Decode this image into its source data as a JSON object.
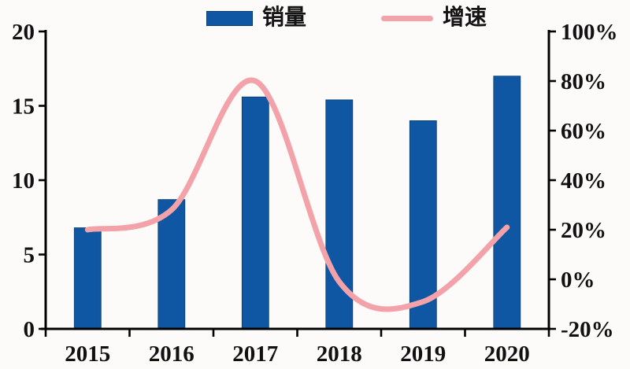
{
  "page": {
    "background": "#fcfbf9",
    "axis_color": "#000000",
    "text_color": "#111111"
  },
  "legend": {
    "items": [
      {
        "label": "销量",
        "swatch": "bar-swatch",
        "color": "#0f57a2"
      },
      {
        "label": "增速",
        "swatch": "line-swatch",
        "color": "#f2a2a8"
      }
    ]
  },
  "chart_data": {
    "type": "bar",
    "subtype": "bar+line combo, dual axis",
    "categories": [
      "2015",
      "2016",
      "2017",
      "2018",
      "2019",
      "2020"
    ],
    "series": [
      {
        "name": "销量",
        "type": "bar",
        "axis": "left",
        "color": "#0f57a2",
        "values": [
          6.8,
          8.7,
          15.6,
          15.4,
          14.0,
          17.0
        ]
      },
      {
        "name": "增速",
        "type": "line",
        "axis": "right",
        "color": "#f2a2a8",
        "unit": "%",
        "values": [
          20,
          28,
          80,
          -1,
          -9,
          21
        ]
      }
    ],
    "left_axis": {
      "min": 0,
      "max": 20,
      "tick_labels_top_down": [
        "20",
        "15",
        "10",
        "5",
        "0"
      ]
    },
    "right_axis": {
      "min": -20,
      "max": 100,
      "tick_labels_top_down": [
        "100%",
        "80%",
        "60%",
        "40%",
        "20%",
        "0%",
        "-20%"
      ]
    },
    "title": "",
    "xlabel": "",
    "ylabel": "",
    "grid": false,
    "legend_position": "top"
  }
}
